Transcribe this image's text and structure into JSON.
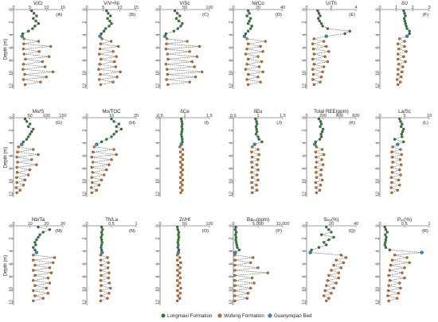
{
  "colors": {
    "longmaxi": "#2e7d32",
    "wufeng": "#d2691e",
    "guanyinqiao": "#2a8fbf",
    "point_stroke": "#333333"
  },
  "legend": [
    {
      "key": "longmaxi",
      "label": "Longmaxi Formation"
    },
    {
      "key": "wufeng",
      "label": "Wufeng Formation"
    },
    {
      "key": "guanyinqiao",
      "label": "Guanyinqiao Bed"
    }
  ],
  "chart_data": {
    "type": "line",
    "shared": {
      "ylabel": "Depth (m)",
      "ylim": [
        0,
        12.5
      ],
      "y_inverted": true,
      "yticks": [
        0,
        2,
        4,
        6,
        8,
        10,
        12
      ]
    },
    "depth": [
      0.2,
      0.6,
      1.0,
      1.4,
      1.8,
      2.2,
      2.6,
      3.0,
      3.4,
      3.8,
      4.2,
      4.6,
      5.0,
      5.4,
      5.8,
      6.2,
      6.6,
      7.0,
      7.4,
      7.8,
      8.2,
      8.6,
      9.0,
      9.4,
      9.8,
      10.2,
      10.6,
      11.0,
      11.4,
      11.8
    ],
    "formation": [
      "longmaxi",
      "longmaxi",
      "longmaxi",
      "longmaxi",
      "longmaxi",
      "longmaxi",
      "longmaxi",
      "longmaxi",
      "longmaxi",
      "longmaxi",
      "guanyinqiao",
      "wufeng",
      "wufeng",
      "wufeng",
      "wufeng",
      "wufeng",
      "wufeng",
      "wufeng",
      "wufeng",
      "wufeng",
      "wufeng",
      "wufeng",
      "wufeng",
      "wufeng",
      "wufeng",
      "wufeng",
      "wufeng",
      "wufeng",
      "wufeng",
      "wufeng"
    ],
    "panels": [
      {
        "letter": "(A)",
        "title": "V/Cr",
        "xlim": [
          0,
          15
        ],
        "xticks": [
          0,
          5,
          10,
          15
        ],
        "values": [
          5.5,
          6.2,
          7.0,
          6.0,
          6.8,
          7.6,
          6.5,
          5.8,
          4.5,
          2.8,
          2.6,
          3.2,
          7.6,
          3.1,
          11.3,
          3.0,
          7.8,
          3.2,
          10.8,
          3.6,
          8.8,
          3.0,
          9.6,
          2.9,
          12.0,
          3.4,
          10.0,
          3.0,
          8.2,
          3.5
        ]
      },
      {
        "letter": "(B)",
        "title": "V/V+Ni",
        "xlim": [
          0,
          15
        ],
        "xticks": [
          0,
          5,
          10,
          15
        ],
        "values": [
          6.0,
          6.5,
          7.2,
          6.3,
          7.0,
          7.5,
          6.8,
          5.7,
          5.2,
          4.4,
          4.0,
          4.6,
          7.4,
          4.2,
          9.6,
          4.0,
          8.0,
          3.8,
          9.0,
          4.3,
          8.4,
          3.9,
          8.8,
          3.6,
          10.2,
          4.1,
          9.2,
          3.8,
          8.0,
          4.2
        ]
      },
      {
        "letter": "(C)",
        "title": "V/Sc",
        "xlim": [
          0,
          100
        ],
        "xticks": [
          0,
          50,
          100
        ],
        "values": [
          30,
          35,
          40,
          33,
          38,
          45,
          42,
          36,
          28,
          12,
          10,
          14,
          55,
          13,
          80,
          12,
          60,
          15,
          75,
          16,
          65,
          12,
          70,
          14,
          85,
          15,
          72,
          13,
          60,
          16
        ]
      },
      {
        "letter": "(D)",
        "title": "Ni/Co",
        "xlim": [
          0,
          40
        ],
        "xticks": [
          0,
          20,
          40
        ],
        "values": [
          12,
          13,
          11,
          14,
          13,
          12,
          15,
          14,
          12,
          10,
          9.0,
          11,
          26,
          12,
          22,
          11,
          24,
          10,
          20,
          12,
          23,
          11,
          21,
          10,
          24,
          12,
          20,
          11,
          22,
          12
        ]
      },
      {
        "letter": "(E)",
        "title": "U/Th",
        "xlim": [
          0,
          4
        ],
        "xticks": [
          0,
          2,
          4
        ],
        "values": [
          0.9,
          1.0,
          1.1,
          0.95,
          1.05,
          1.2,
          1.3,
          1.7,
          3.5,
          3.1,
          1.6,
          0.6,
          1.4,
          0.5,
          1.6,
          0.55,
          1.8,
          0.6,
          1.5,
          0.5,
          1.7,
          0.6,
          1.4,
          0.5,
          1.3,
          0.55,
          1.2,
          0.5,
          1.1,
          0.6
        ]
      },
      {
        "letter": "(F)",
        "title": "δU",
        "xlim": [
          0,
          3
        ],
        "xticks": [
          0,
          1,
          2,
          3
        ],
        "values": [
          1.45,
          1.5,
          1.55,
          1.48,
          1.52,
          1.56,
          1.6,
          1.65,
          1.8,
          1.8,
          1.65,
          1.2,
          1.5,
          1.1,
          1.5,
          1.15,
          1.6,
          1.1,
          1.45,
          1.1,
          1.55,
          1.15,
          1.4,
          1.1,
          1.35,
          1.1,
          1.3,
          1.05,
          1.25,
          1.1
        ]
      },
      {
        "letter": "(G)",
        "title": "Mo/S",
        "xlim": [
          0,
          150
        ],
        "xticks": [
          0,
          50,
          100,
          150
        ],
        "values": [
          35,
          40,
          50,
          45,
          60,
          55,
          50,
          45,
          40,
          30,
          25,
          15,
          60,
          12,
          75,
          10,
          55,
          12,
          70,
          10,
          50,
          11,
          45,
          9,
          35,
          10,
          30,
          8,
          20,
          10
        ]
      },
      {
        "letter": "(H)",
        "title": "Mo/TOC",
        "xlim": [
          0,
          20
        ],
        "xticks": [
          0,
          10,
          20
        ],
        "values": [
          10,
          11,
          13,
          12,
          14,
          12,
          11,
          10,
          8,
          6,
          4,
          3,
          11,
          2.5,
          12,
          2,
          10,
          2.5,
          9,
          2,
          8,
          2.3,
          7,
          2,
          6,
          2.2,
          5,
          1.8,
          4,
          2
        ]
      },
      {
        "letter": "(I)",
        "title": "δCe",
        "xlim": [
          0.5,
          1.5
        ],
        "xticks": [
          0.5,
          1,
          1.5
        ],
        "values": [
          0.93,
          0.94,
          0.95,
          0.94,
          0.95,
          0.94,
          0.93,
          0.94,
          0.95,
          0.95,
          0.93,
          0.9,
          0.96,
          0.91,
          0.96,
          0.92,
          0.96,
          0.91,
          0.95,
          0.92,
          0.96,
          0.92,
          0.95,
          0.91,
          0.96,
          0.92,
          0.95,
          0.91,
          0.95,
          0.92
        ]
      },
      {
        "letter": "(J)",
        "title": "δEu",
        "xlim": [
          0.5,
          1.5
        ],
        "xticks": [
          0.5,
          1,
          1.5
        ],
        "values": [
          0.95,
          0.97,
          0.98,
          0.96,
          0.97,
          0.98,
          0.96,
          1.0,
          1.02,
          1.08,
          0.93,
          0.88,
          1.0,
          0.87,
          1.02,
          0.88,
          1.0,
          0.87,
          0.98,
          0.88,
          1.0,
          0.87,
          0.98,
          0.88,
          1.0,
          0.87,
          0.97,
          0.88,
          0.98,
          0.88
        ]
      },
      {
        "letter": "(K)",
        "title": "Total REE(ppm)",
        "xlim": [
          0,
          600
        ],
        "xticks": [
          0,
          200,
          400,
          600
        ],
        "values": [
          150,
          170,
          180,
          165,
          200,
          190,
          175,
          180,
          160,
          110,
          100,
          120,
          190,
          110,
          210,
          115,
          185,
          120,
          200,
          110,
          180,
          115,
          175,
          120,
          190,
          110,
          170,
          115,
          160,
          120
        ]
      },
      {
        "letter": "(L)",
        "title": "La/Sc",
        "xlim": [
          0,
          10
        ],
        "xticks": [
          0,
          5,
          10
        ],
        "values": [
          4.0,
          4.2,
          4.5,
          4.3,
          4.8,
          4.6,
          4.4,
          4.5,
          3.0,
          4.8,
          3.6,
          2.6,
          4.2,
          2.4,
          4.4,
          2.5,
          4.1,
          2.6,
          4.3,
          2.4,
          4.0,
          2.5,
          4.2,
          2.3,
          3.8,
          2.4,
          4.0,
          2.3,
          3.6,
          2.4
        ]
      },
      {
        "letter": "(M)",
        "title": "Nb/Ta",
        "xlim": [
          0,
          30
        ],
        "xticks": [
          0,
          10,
          20,
          30
        ],
        "values": [
          15,
          22,
          18,
          16,
          15,
          14,
          13,
          13.5,
          12,
          13,
          14,
          12,
          25,
          12,
          24,
          13,
          22,
          12,
          23,
          13,
          21,
          12,
          22,
          13,
          20,
          12,
          21,
          13,
          18,
          12
        ]
      },
      {
        "letter": "(N)",
        "title": "Th/La",
        "xlim": [
          0,
          1
        ],
        "xticks": [
          0,
          0.5,
          1
        ],
        "values": [
          0.3,
          0.32,
          0.3,
          0.31,
          0.29,
          0.3,
          0.31,
          0.3,
          0.29,
          0.3,
          0.31,
          0.28,
          0.42,
          0.28,
          0.44,
          0.29,
          0.43,
          0.28,
          0.45,
          0.29,
          0.44,
          0.28,
          0.46,
          0.29,
          0.48,
          0.28,
          0.45,
          0.29,
          0.42,
          0.28
        ]
      },
      {
        "letter": "(O)",
        "title": "Zr/Hf",
        "xlim": [
          0,
          100
        ],
        "xticks": [
          0,
          50,
          100
        ],
        "values": [
          35,
          36,
          38,
          37,
          38,
          37,
          36,
          37,
          36,
          38,
          37,
          35,
          40,
          35,
          42,
          36,
          41,
          35,
          40,
          36,
          41,
          35,
          40,
          36,
          42,
          35,
          41,
          36,
          40,
          35
        ]
      },
      {
        "letter": "(P)",
        "title": "Baₓₛ(ppm)",
        "xlim": [
          0,
          10000
        ],
        "xticks": [
          0,
          5000,
          10000
        ],
        "values": [
          500,
          400,
          600,
          450,
          550,
          500,
          600,
          700,
          800,
          1200,
          400,
          300,
          4000,
          350,
          3500,
          300,
          5000,
          320,
          7000,
          300,
          3800,
          320,
          4200,
          300,
          3500,
          320,
          3000,
          300,
          2800,
          320
        ]
      },
      {
        "letter": "(Q)",
        "title": "Siₓₛ(%)",
        "xlim": [
          0,
          40
        ],
        "xticks": [
          0,
          20,
          40
        ],
        "values": [
          16,
          18,
          20,
          12,
          22,
          18,
          14,
          16,
          10,
          4,
          3,
          28,
          32,
          24,
          30,
          22,
          28,
          20,
          26,
          18,
          26,
          17,
          24,
          16,
          22,
          15,
          20,
          14,
          18,
          16
        ]
      },
      {
        "letter": "(R)",
        "title": "Pₓₛ(%)",
        "xlim": [
          0,
          1
        ],
        "xticks": [
          0,
          0.5,
          1
        ],
        "values": [
          0.1,
          0.12,
          0.15,
          0.11,
          0.13,
          0.12,
          0.11,
          0.1,
          0.12,
          0.2,
          0.85,
          0.3,
          0.55,
          0.25,
          0.6,
          0.22,
          0.5,
          0.2,
          0.45,
          0.18,
          0.5,
          0.2,
          0.4,
          0.18,
          0.42,
          0.17,
          0.38,
          0.16,
          0.35,
          0.18
        ]
      }
    ]
  }
}
